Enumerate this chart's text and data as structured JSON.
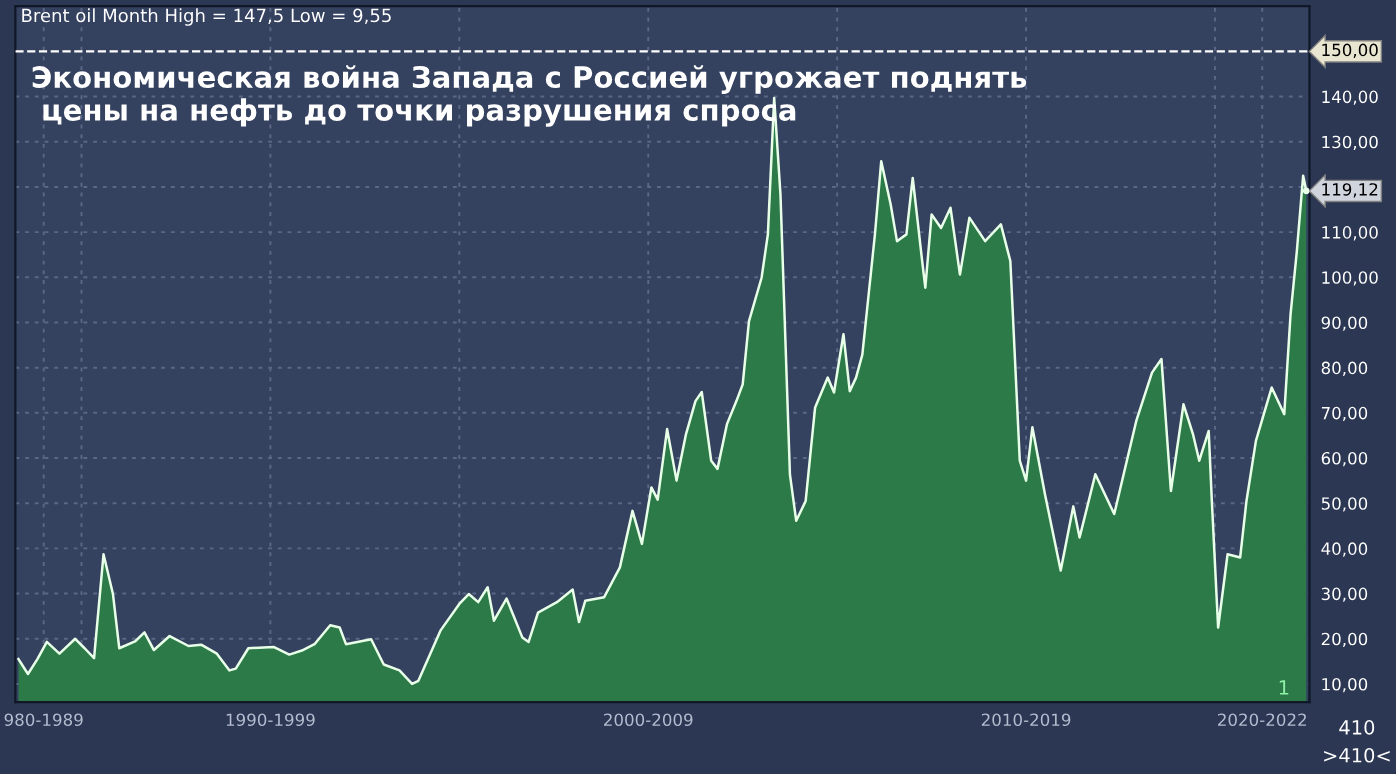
{
  "chart_data": {
    "type": "area",
    "title": "Экономическая война Запада с Россией угрожает поднять\n цены на нефть до точки разрушения спроса",
    "subtitle": "Brent oil Month High = 147,5 Low = 9,55",
    "x": [
      "1988-05",
      "1988-08",
      "1988-11",
      "1989-02",
      "1989-06",
      "1989-11",
      "1990-02",
      "1990-05",
      "1990-08",
      "1990-11",
      "1991-01",
      "1991-06",
      "1991-09",
      "1991-12",
      "1992-05",
      "1992-11",
      "1993-03",
      "1993-08",
      "1993-12",
      "1994-02",
      "1994-06",
      "1995-02",
      "1995-07",
      "1995-11",
      "1996-03",
      "1996-08",
      "1996-11",
      "1997-01",
      "1997-09",
      "1998-01",
      "1998-06",
      "1998-10",
      "1998-12",
      "1999-07",
      "2000-01",
      "2000-04",
      "2000-07",
      "2000-10",
      "2000-12",
      "2001-04",
      "2001-06",
      "2001-09",
      "2001-11",
      "2002-02",
      "2002-08",
      "2003-01",
      "2003-03",
      "2003-05",
      "2003-11",
      "2004-04",
      "2004-08",
      "2004-11",
      "2005-02",
      "2005-04",
      "2005-07",
      "2005-10",
      "2006-01",
      "2006-04",
      "2006-06",
      "2006-09",
      "2006-11",
      "2007-02",
      "2007-05",
      "2007-07",
      "2007-09",
      "2008-01",
      "2008-03",
      "2008-05",
      "2008-07",
      "2008-10",
      "2008-12",
      "2009-03",
      "2009-06",
      "2009-10",
      "2009-12",
      "2010-03",
      "2010-05",
      "2010-07",
      "2010-09",
      "2011-01",
      "2011-03",
      "2011-06",
      "2011-08",
      "2011-11",
      "2012-01",
      "2012-04",
      "2012-05",
      "2012-07",
      "2012-10",
      "2013-01",
      "2013-04",
      "2013-07",
      "2013-12",
      "2014-05",
      "2014-08",
      "2014-11",
      "2015-01",
      "2015-03",
      "2015-07",
      "2015-12",
      "2016-04",
      "2016-06",
      "2016-11",
      "2017-05",
      "2017-12",
      "2018-05",
      "2018-08",
      "2018-11",
      "2019-03",
      "2019-06",
      "2019-08",
      "2019-11",
      "2019-12",
      "2020-02",
      "2020-05",
      "2020-09",
      "2020-11",
      "2021-02",
      "2021-07",
      "2021-11",
      "2022-01",
      "2022-03",
      "2022-05",
      "2022-06"
    ],
    "series": [
      {
        "color": "#2b7a48",
        "values": [
          15.5,
          12.2,
          15.5,
          19.3,
          16.7,
          20.0,
          17.9,
          15.7,
          38.7,
          29.9,
          17.9,
          19.4,
          21.4,
          17.5,
          20.6,
          18.4,
          18.7,
          16.7,
          13.0,
          13.4,
          17.9,
          18.2,
          16.5,
          17.4,
          18.8,
          23.0,
          22.5,
          18.8,
          19.9,
          14.3,
          13.0,
          10.0,
          10.7,
          21.8,
          27.7,
          29.9,
          28.1,
          31.4,
          24.0,
          28.9,
          25.5,
          20.3,
          19.3,
          25.8,
          28.1,
          30.9,
          23.7,
          28.4,
          29.2,
          35.8,
          48.3,
          41.0,
          53.5,
          50.8,
          66.4,
          55.0,
          65.3,
          72.6,
          74.6,
          59.4,
          57.6,
          67.5,
          72.6,
          76.3,
          90.3,
          99.9,
          109.5,
          139.7,
          118.3,
          56.4,
          46.1,
          50.5,
          71.2,
          77.8,
          74.5,
          87.4,
          74.8,
          77.8,
          82.9,
          109.5,
          125.7,
          116.1,
          108.0,
          109.5,
          122.0,
          103.6,
          97.7,
          113.9,
          110.9,
          115.4,
          100.6,
          113.2,
          108.0,
          111.7,
          103.6,
          59.4,
          55.0,
          66.8,
          52.0,
          35.1,
          49.3,
          42.4,
          56.4,
          47.6,
          68.2,
          78.9,
          81.9,
          52.7,
          71.9,
          65.3,
          59.4,
          66.0,
          50.5,
          22.5,
          38.7,
          38.0,
          50.5,
          63.8,
          75.6,
          69.7,
          91.8,
          105.8,
          122.5,
          119.12
        ]
      }
    ],
    "xlim": [
      "1988-04",
      "2022-07"
    ],
    "xticks": [
      {
        "value": "1989-01",
        "label": "980-1989"
      },
      {
        "value": "1990-01",
        "label": null
      },
      {
        "value": "1995-01",
        "label": "1990-1999"
      },
      {
        "value": "2000-01",
        "label": null
      },
      {
        "value": "2005-01",
        "label": "2000-2009"
      },
      {
        "value": "2010-01",
        "label": null
      },
      {
        "value": "2015-01",
        "label": "2010-2019"
      },
      {
        "value": "2020-01",
        "label": null
      },
      {
        "value": "2021-04",
        "label": "2020-2022"
      }
    ],
    "ylim": [
      6,
      160
    ],
    "yticks": [
      {
        "value": 10,
        "label": "10,00"
      },
      {
        "value": 20,
        "label": "20,00"
      },
      {
        "value": 30,
        "label": "30,00"
      },
      {
        "value": 40,
        "label": "40,00"
      },
      {
        "value": 50,
        "label": "50,00"
      },
      {
        "value": 60,
        "label": "60,00"
      },
      {
        "value": 70,
        "label": "70,00"
      },
      {
        "value": 80,
        "label": "80,00"
      },
      {
        "value": 90,
        "label": "90,00"
      },
      {
        "value": 100,
        "label": "100,00"
      },
      {
        "value": 110,
        "label": "110,00"
      },
      {
        "value": 120,
        "label": null
      },
      {
        "value": 130,
        "label": "130,00"
      },
      {
        "value": 140,
        "label": "140,00"
      }
    ],
    "ref_lines": [
      {
        "axis": "y",
        "value": 150,
        "label": "150,00",
        "color": "#ffffff",
        "line_style": "dashed"
      }
    ],
    "annotations": [
      {
        "text": "119,12",
        "x": "2022-06",
        "y": 119.12
      },
      "1",
      "410",
      ">410<"
    ],
    "grid": true,
    "legend": false
  }
}
